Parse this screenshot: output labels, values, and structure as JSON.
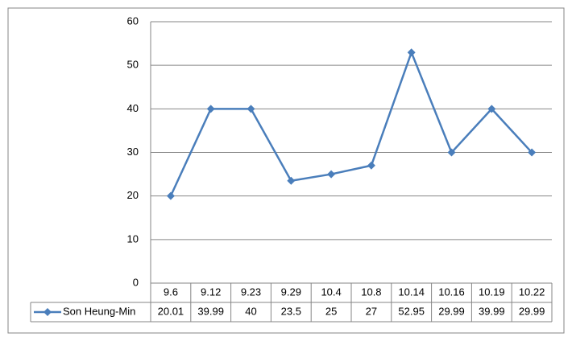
{
  "chart_data": {
    "type": "line",
    "categories": [
      "9.6",
      "9.12",
      "9.23",
      "9.29",
      "10.4",
      "10.8",
      "10.14",
      "10.16",
      "10.19",
      "10.22"
    ],
    "series": [
      {
        "name": "Son Heung-Min",
        "color": "#4a7ebb",
        "values": [
          20.01,
          39.99,
          40,
          23.5,
          25,
          27,
          52.95,
          29.99,
          39.99,
          29.99
        ]
      }
    ],
    "ylim": [
      0,
      60
    ],
    "yticks": [
      0,
      10,
      20,
      30,
      40,
      50,
      60
    ],
    "grid": true,
    "data_table": true
  }
}
